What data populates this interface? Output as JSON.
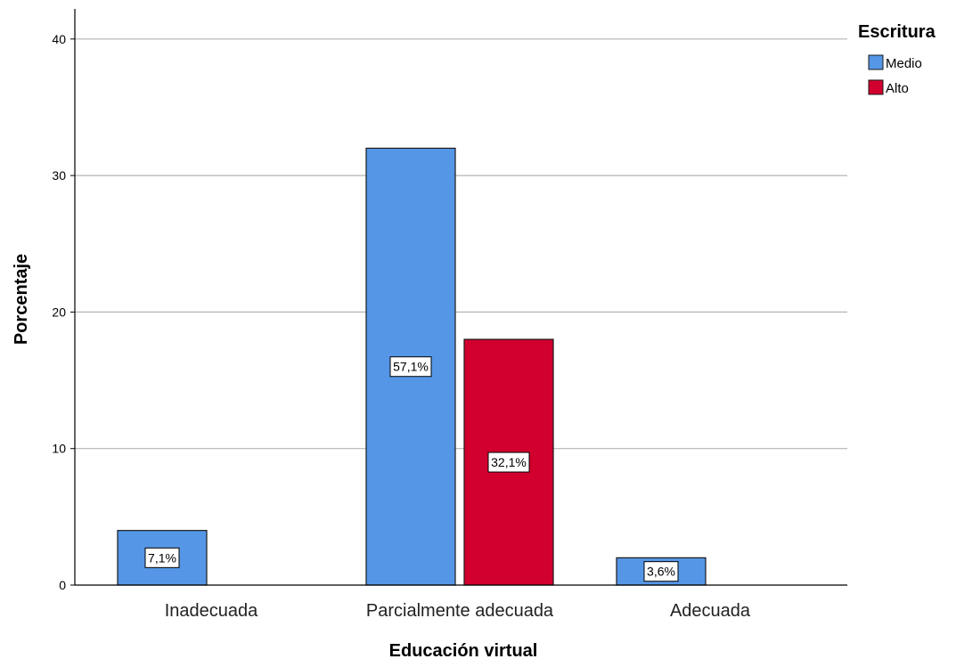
{
  "chart_data": {
    "type": "bar",
    "title": "",
    "xlabel": "Educación virtual",
    "ylabel": "Porcentaje",
    "categories": [
      "Inadecuada",
      "Parcialmente adecuada",
      "Adecuada"
    ],
    "ylim": [
      0,
      42
    ],
    "yticks": [
      0,
      10,
      20,
      30,
      40
    ],
    "grid": true,
    "legend": {
      "title": "Escritura",
      "placement": "top-right"
    },
    "series": [
      {
        "name": "Medio",
        "color": "#5596e6",
        "values": [
          4,
          32,
          2
        ],
        "data_labels": [
          "7,1%",
          "57,1%",
          "3,6%"
        ]
      },
      {
        "name": "Alto",
        "color": "#d2002f",
        "values": [
          null,
          18,
          null
        ],
        "data_labels": [
          null,
          "32,1%",
          null
        ]
      }
    ]
  }
}
